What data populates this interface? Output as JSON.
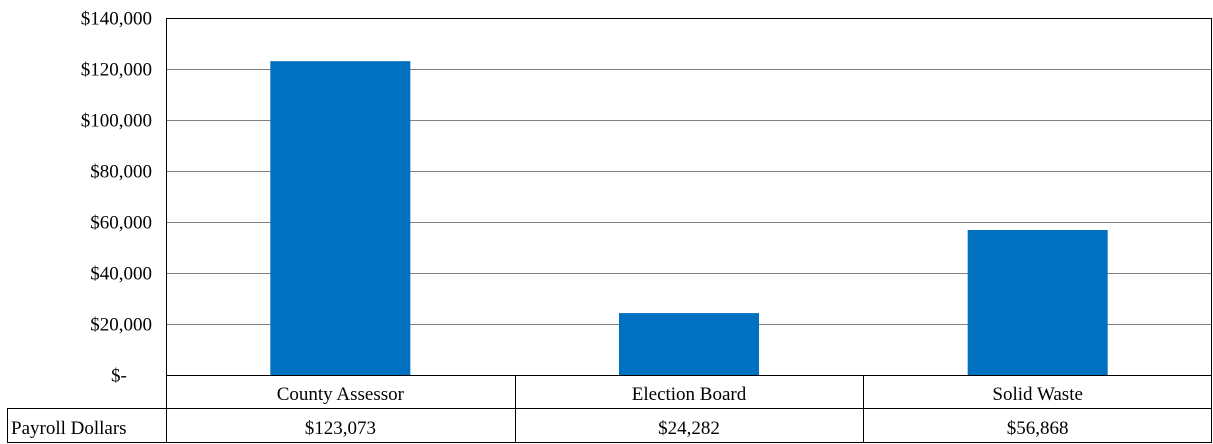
{
  "chart_data": {
    "type": "bar",
    "categories": [
      "County Assessor",
      "Election Board",
      "Solid Waste"
    ],
    "series": [
      {
        "name": "Payroll Dollars",
        "values": [
          123073,
          24282,
          56868
        ]
      }
    ],
    "data_table": {
      "row_label": "Payroll Dollars",
      "cells": [
        "$123,073",
        "$24,282",
        "$56,868"
      ]
    },
    "y_ticks": [
      {
        "value": 0,
        "label": "$-"
      },
      {
        "value": 20000,
        "label": "$20,000"
      },
      {
        "value": 40000,
        "label": "$40,000"
      },
      {
        "value": 60000,
        "label": "$60,000"
      },
      {
        "value": 80000,
        "label": "$80,000"
      },
      {
        "value": 100000,
        "label": "$100,000"
      },
      {
        "value": 120000,
        "label": "$120,000"
      },
      {
        "value": 140000,
        "label": "$140,000"
      }
    ],
    "ylim": [
      0,
      140000
    ],
    "title": "",
    "xlabel": "",
    "ylabel": "",
    "grid": true,
    "legend": "data-table",
    "colors": {
      "bar": "#0070C0",
      "grid": "#808080",
      "border": "#000000"
    }
  }
}
